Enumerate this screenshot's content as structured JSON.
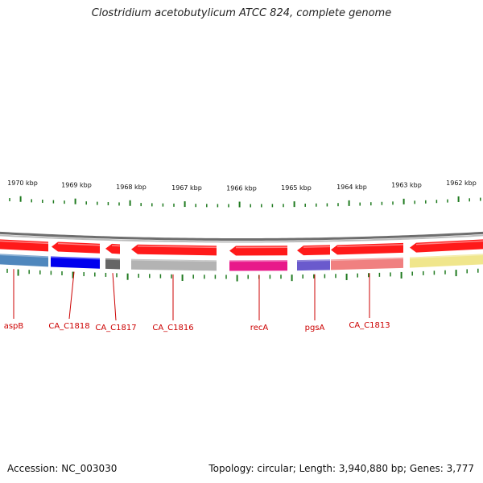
{
  "title": "Clostridium acetobutylicum ATCC 824, complete genome",
  "footer": {
    "accession": "Accession: NC_003030",
    "topology": "Topology: circular; Length: 3,940,880 bp; Genes: 3,777"
  },
  "colors": {
    "backbone": "#8c8c8c",
    "cds": "#ff1a1a",
    "label": "#cc0000",
    "tick": "#1f7a1f"
  },
  "scale": {
    "labels": [
      "1970 kbp",
      "1969 kbp",
      "1968 kbp",
      "1967 kbp",
      "1966 kbp",
      "1965 kbp",
      "1964 kbp",
      "1963 kbp",
      "1962 kbp"
    ]
  },
  "genes": [
    {
      "name": "aspB",
      "color": "#4f87bd",
      "strand": "-"
    },
    {
      "name": "CA_C1818",
      "color": "#0000ee",
      "strand": "-"
    },
    {
      "name": "CA_C1817",
      "color": "#666666",
      "strand": "-"
    },
    {
      "name": "CA_C1816",
      "color": "#b3b3b3",
      "strand": "-"
    },
    {
      "name": "recA",
      "color": "#e8198a",
      "strand": "-"
    },
    {
      "name": "pgsA",
      "color": "#6a5acd",
      "strand": "-"
    },
    {
      "name": "CA_C1813",
      "color": "#f08080",
      "strand": "-"
    },
    {
      "name": "",
      "color": "#f0e68c",
      "strand": "-"
    }
  ]
}
